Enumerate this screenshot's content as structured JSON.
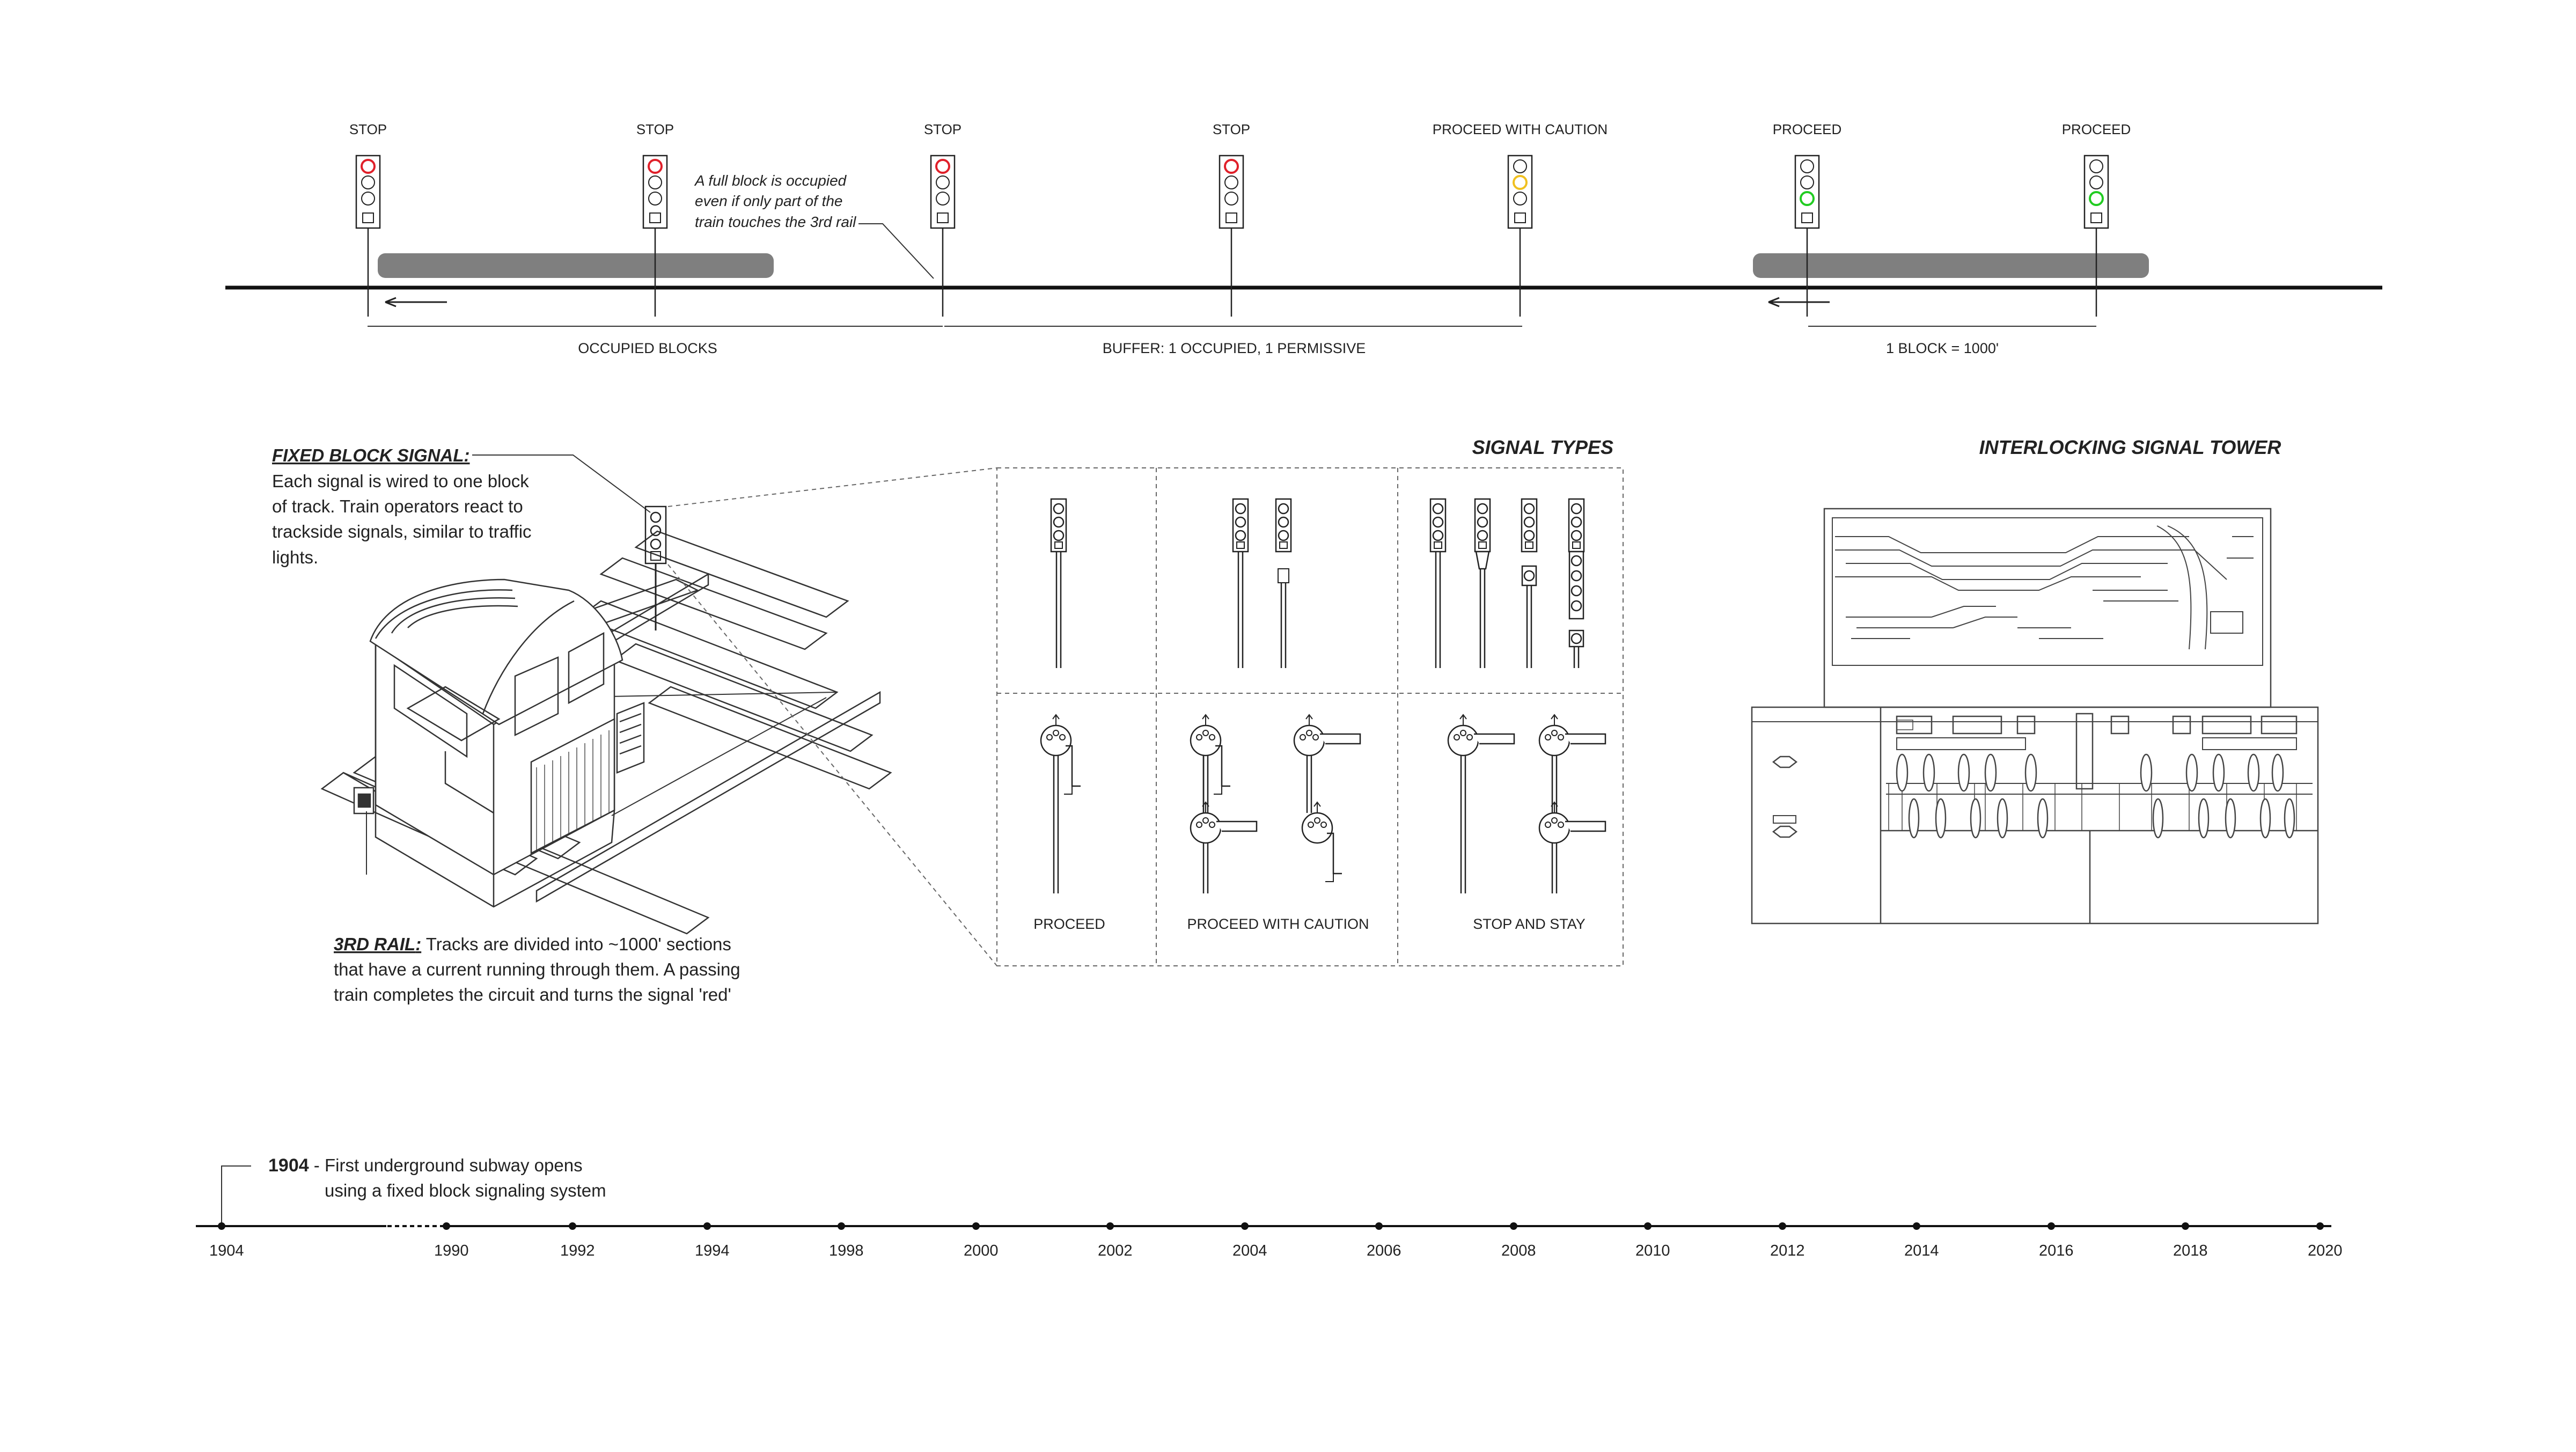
{
  "signals_row": {
    "signals": [
      {
        "label": "STOP",
        "aspect": "red"
      },
      {
        "label": "STOP",
        "aspect": "red"
      },
      {
        "label": "STOP",
        "aspect": "red"
      },
      {
        "label": "STOP",
        "aspect": "red"
      },
      {
        "label": "PROCEED WITH CAUTION",
        "aspect": "yellow"
      },
      {
        "label": "PROCEED",
        "aspect": "green"
      },
      {
        "label": "PROCEED",
        "aspect": "green"
      }
    ],
    "note_lines": [
      "A full block is occupied",
      "even if only part of the",
      "train touches the 3rd rail"
    ],
    "spans": {
      "occupied": "OCCUPIED BLOCKS",
      "buffer": "BUFFER: 1 OCCUPIED, 1 PERMISSIVE",
      "block": "1 BLOCK = 1000'"
    }
  },
  "colors": {
    "red": "#e0202a",
    "yellow": "#f0c020",
    "green": "#22cc22",
    "train": "#7f7f7f",
    "ink": "#222222"
  },
  "fixed_block": {
    "title": "FIXED BLOCK SIGNAL",
    "lines": [
      "Each signal is wired to one block",
      "of track. Train operators react to",
      "trackside signals, similar to traffic",
      "lights."
    ]
  },
  "third_rail": {
    "title": "3RD RAIL",
    "first_line_rest": " Tracks are divided into ~1000' sections",
    "lines": [
      "that have a current running through them. A passing",
      "train completes the circuit and turns the signal 'red'"
    ]
  },
  "signal_types": {
    "title": "SIGNAL TYPES",
    "columns": [
      "PROCEED",
      "PROCEED WITH CAUTION",
      "STOP AND STAY"
    ]
  },
  "tower": {
    "title": "INTERLOCKING SIGNAL TOWER"
  },
  "timeline": {
    "event_year": "1904",
    "event_text": " - First underground subway opens",
    "event_text2": "using a fixed block signaling system",
    "years": [
      "1904",
      "1990",
      "1992",
      "1994",
      "1998",
      "2000",
      "2002",
      "2004",
      "2006",
      "2008",
      "2010",
      "2012",
      "2014",
      "2016",
      "2018",
      "2020"
    ]
  }
}
